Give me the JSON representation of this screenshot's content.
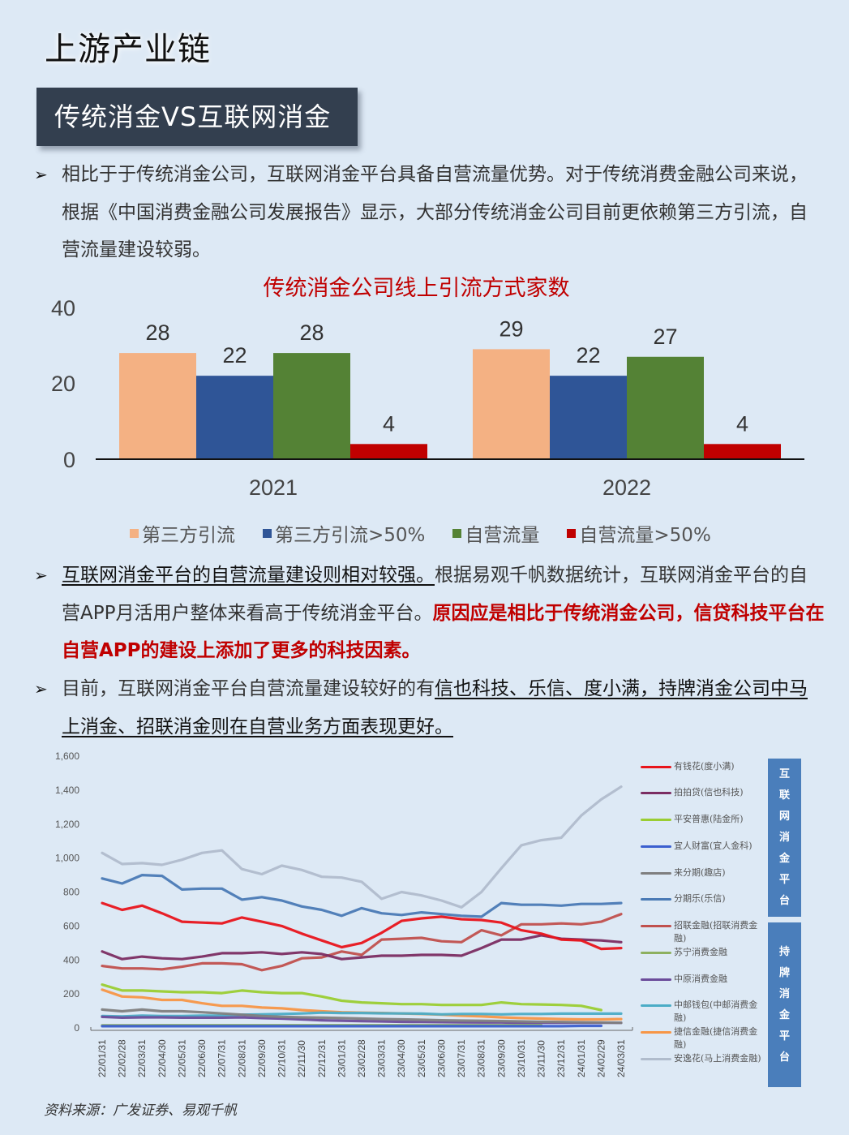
{
  "page": {
    "title": "上游产业链",
    "banner": "传统消金VS互联网消金",
    "bullet_symbol": "➢"
  },
  "bullets": [
    {
      "segments": [
        {
          "text": "相比于于传统消金公司，互联网消金平台具备自营流量优势。对于传统消费金融公司来说，根据《中国消费金融公司发展报告》显示，大部分传统消金公司目前更依赖第三方引流，自营流量建设较弱。",
          "style": "normal"
        }
      ]
    },
    {
      "segments": [
        {
          "text": "互联网消金平台的自营流量建设则相对较强。",
          "style": "underline"
        },
        {
          "text": "根据易观千帆数据统计，互联网消金平台的自营APP月活用户整体来看高于传统消金平台。",
          "style": "normal"
        },
        {
          "text": "原因应是相比于传统消金公司，信贷科技平台在自营APP的建设上添加了更多的科技因素。",
          "style": "red"
        }
      ]
    },
    {
      "segments": [
        {
          "text": "目前，互联网消金平台自营流量建设较好的有",
          "style": "normal"
        },
        {
          "text": "信也科技、乐信、度小满，持牌消金公司中马上消金、招联消金则在自营业务方面表现更好。",
          "style": "underline"
        }
      ]
    }
  ],
  "source": "资料来源：广发证券、易观千帆",
  "chart_data": [
    {
      "type": "bar",
      "title": "传统消金公司线上引流方式家数",
      "categories": [
        "2021",
        "2022"
      ],
      "series": [
        {
          "name": "第三方引流",
          "color": "#f4b183",
          "values": [
            28,
            29
          ]
        },
        {
          "name": "第三方引流>50%",
          "color": "#2f5597",
          "values": [
            22,
            22
          ]
        },
        {
          "name": "自营流量",
          "color": "#548235",
          "values": [
            28,
            27
          ]
        },
        {
          "name": "自营流量>50%",
          "color": "#c00000",
          "values": [
            4,
            4
          ]
        }
      ],
      "yticks": [
        "0",
        "20",
        "40"
      ],
      "ylim": [
        0,
        40
      ],
      "grid": false,
      "legend_position": "bottom",
      "xlabel": "",
      "ylabel": ""
    },
    {
      "type": "line",
      "title": "",
      "x": [
        "22/01/31",
        "22/02/28",
        "22/03/31",
        "22/04/30",
        "22/05/31",
        "22/06/30",
        "22/07/31",
        "22/08/31",
        "22/09/30",
        "22/10/31",
        "22/11/30",
        "22/12/31",
        "23/01/31",
        "23/02/28",
        "23/03/31",
        "23/04/30",
        "23/05/31",
        "23/06/30",
        "23/07/31",
        "23/08/31",
        "23/09/30",
        "23/10/31",
        "23/11/30",
        "23/12/31",
        "24/01/31",
        "24/02/29",
        "24/03/31"
      ],
      "yticks": [
        "0",
        "200",
        "400",
        "600",
        "800",
        "1,000",
        "1,200",
        "1,400",
        "1,600"
      ],
      "ylim": [
        0,
        1600
      ],
      "grid": false,
      "legend_position": "right",
      "groups": [
        {
          "label": "互联网消金平台",
          "series_range": [
            0,
            5
          ]
        },
        {
          "label": "持牌消金平台",
          "series_range": [
            6,
            11
          ]
        }
      ],
      "series": [
        {
          "name": "有钱花(度小满)",
          "color": "#e8141b",
          "values": [
            735,
            695,
            720,
            675,
            625,
            620,
            615,
            650,
            625,
            600,
            555,
            515,
            475,
            500,
            560,
            630,
            645,
            655,
            640,
            635,
            620,
            575,
            555,
            520,
            515,
            465,
            470
          ]
        },
        {
          "name": "拍拍贷(信也科技)",
          "color": "#7b2d62",
          "values": [
            450,
            405,
            420,
            410,
            405,
            420,
            440,
            440,
            445,
            435,
            445,
            435,
            405,
            415,
            425,
            425,
            430,
            430,
            425,
            470,
            520,
            520,
            545,
            525,
            520,
            515,
            505
          ]
        },
        {
          "name": "平安普惠(陆金所)",
          "color": "#9acd32",
          "values": [
            255,
            220,
            220,
            215,
            210,
            210,
            205,
            220,
            210,
            205,
            205,
            185,
            160,
            150,
            145,
            140,
            140,
            135,
            135,
            135,
            150,
            140,
            138,
            135,
            130,
            105,
            null
          ]
        },
        {
          "name": "宜人财富(宜人金科)",
          "color": "#3b5fcf",
          "values": [
            10,
            10,
            10,
            10,
            10,
            10,
            10,
            10,
            10,
            10,
            10,
            10,
            10,
            10,
            10,
            10,
            10,
            10,
            10,
            10,
            10,
            10,
            10,
            10,
            12,
            12,
            null
          ]
        },
        {
          "name": "来分期(趣店)",
          "color": "#7f7f7f",
          "values": [
            108,
            98,
            108,
            98,
            98,
            92,
            85,
            78,
            70,
            65,
            62,
            60,
            58,
            55,
            52,
            50,
            48,
            45,
            43,
            42,
            40,
            38,
            36,
            35,
            33,
            32,
            30
          ]
        },
        {
          "name": "分期乐(乐信)",
          "color": "#4a7ab5",
          "values": [
            880,
            850,
            900,
            895,
            815,
            820,
            820,
            755,
            770,
            750,
            715,
            695,
            660,
            705,
            675,
            665,
            680,
            670,
            660,
            655,
            735,
            725,
            725,
            720,
            730,
            730,
            735
          ]
        },
        {
          "name": "招联金融(招联消费金融)",
          "color": "#c0504d",
          "values": [
            365,
            350,
            350,
            345,
            360,
            380,
            380,
            375,
            340,
            365,
            410,
            415,
            450,
            430,
            520,
            525,
            530,
            510,
            505,
            575,
            545,
            610,
            610,
            615,
            610,
            625,
            670
          ]
        },
        {
          "name": "苏宁消费金融",
          "color": "#8db05f",
          "values": [
            15,
            15,
            15,
            16,
            16,
            16,
            16,
            16,
            16,
            16,
            16,
            16,
            16,
            16,
            16,
            16,
            16,
            16,
            16,
            16,
            16,
            16,
            16,
            null,
            null,
            null,
            null
          ]
        },
        {
          "name": "中原消费金融",
          "color": "#6b4c9a",
          "values": [
            65,
            60,
            62,
            62,
            60,
            60,
            60,
            62,
            58,
            55,
            50,
            45,
            42,
            40,
            38,
            36,
            35,
            34,
            33,
            32,
            32,
            30,
            30,
            30,
            30,
            30,
            30
          ]
        },
        {
          "name": "中邮钱包(中邮消费金融)",
          "color": "#4bacc6",
          "values": [
            70,
            68,
            72,
            70,
            70,
            72,
            72,
            78,
            80,
            82,
            85,
            90,
            88,
            88,
            86,
            85,
            84,
            80,
            82,
            82,
            80,
            82,
            82,
            84,
            84,
            84,
            84
          ]
        },
        {
          "name": "捷信金融(捷信消费金融)",
          "color": "#f79646",
          "values": [
            225,
            185,
            180,
            165,
            165,
            145,
            130,
            130,
            120,
            115,
            105,
            98,
            92,
            90,
            88,
            85,
            82,
            78,
            72,
            68,
            62,
            58,
            55,
            52,
            50,
            50,
            52
          ]
        },
        {
          "name": "安逸花(马上消费金融)",
          "color": "#b0bccc",
          "values": [
            1030,
            965,
            970,
            960,
            990,
            1030,
            1045,
            935,
            905,
            955,
            930,
            890,
            885,
            860,
            760,
            800,
            780,
            750,
            710,
            800,
            940,
            1075,
            1105,
            1120,
            1250,
            1345,
            1420
          ]
        }
      ]
    }
  ]
}
